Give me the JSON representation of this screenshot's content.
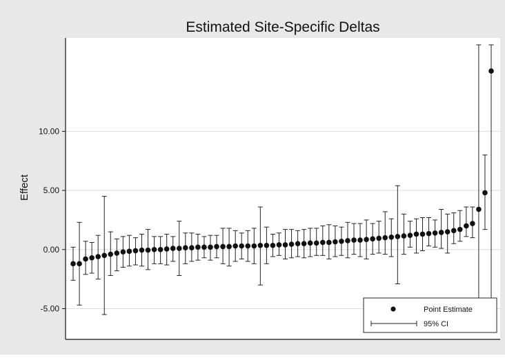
{
  "chart_data": {
    "type": "scatter",
    "title": "Estimated Site-Specific Deltas",
    "ylabel": "Effect",
    "xlabel": "",
    "ylim": [
      -7.6,
      17.9
    ],
    "yticks": [
      -5,
      0,
      5,
      10
    ],
    "ytick_labels": [
      "-5.00",
      "0.00",
      "5.00",
      "10.00"
    ],
    "grid": true,
    "legend": {
      "placement": "bottom-right",
      "entries": [
        "Point Estimate",
        "95% CI"
      ]
    },
    "colors": {
      "marks": "#111111",
      "background": "#e8e8e8",
      "plot": "#ffffff",
      "grid": "#dddddd"
    },
    "series": [
      {
        "name": "Point Estimate",
        "values": [
          -1.2,
          -1.2,
          -0.8,
          -0.7,
          -0.6,
          -0.5,
          -0.4,
          -0.3,
          -0.2,
          -0.15,
          -0.1,
          -0.05,
          -0.05,
          0.0,
          0.0,
          0.05,
          0.1,
          0.1,
          0.15,
          0.15,
          0.2,
          0.2,
          0.2,
          0.25,
          0.25,
          0.25,
          0.3,
          0.3,
          0.3,
          0.3,
          0.35,
          0.35,
          0.35,
          0.4,
          0.4,
          0.45,
          0.5,
          0.5,
          0.55,
          0.55,
          0.6,
          0.6,
          0.65,
          0.7,
          0.75,
          0.8,
          0.8,
          0.85,
          0.9,
          0.95,
          1.0,
          1.05,
          1.1,
          1.15,
          1.2,
          1.3,
          1.3,
          1.35,
          1.4,
          1.45,
          1.5,
          1.6,
          1.7,
          2.0,
          2.2,
          3.4,
          4.8,
          15.1
        ]
      },
      {
        "name": "95% CI",
        "lower": [
          -2.6,
          -4.7,
          -2.1,
          -2.0,
          -2.5,
          -5.5,
          -2.2,
          -1.8,
          -1.5,
          -1.4,
          -1.3,
          -1.4,
          -1.7,
          -1.2,
          -1.2,
          -1.3,
          -1.0,
          -2.2,
          -1.2,
          -1.0,
          -0.9,
          -0.7,
          -0.9,
          -0.7,
          -1.2,
          -1.4,
          -1.0,
          -0.8,
          -1.0,
          -1.2,
          -3.0,
          -1.2,
          -0.6,
          -0.5,
          -0.8,
          -0.7,
          -0.6,
          -0.7,
          -0.6,
          -0.5,
          -0.5,
          -0.8,
          -0.6,
          -0.5,
          -0.7,
          -0.4,
          -0.6,
          -0.8,
          -0.4,
          -0.3,
          -0.4,
          -0.6,
          -2.9,
          -0.4,
          0.2,
          -0.3,
          -0.1,
          0.3,
          0.2,
          0.1,
          -0.3,
          0.5,
          0.7,
          1.1,
          1.0,
          -4.5,
          1.7,
          -4.5
        ],
        "upper": [
          0.2,
          2.3,
          0.7,
          0.6,
          1.2,
          4.5,
          1.5,
          0.9,
          1.1,
          1.2,
          1.0,
          1.3,
          1.7,
          1.1,
          1.1,
          1.3,
          1.1,
          2.4,
          1.4,
          1.4,
          1.3,
          1.1,
          1.2,
          1.2,
          1.8,
          1.8,
          1.6,
          1.4,
          1.6,
          1.8,
          3.6,
          1.9,
          1.3,
          1.4,
          1.7,
          1.7,
          1.6,
          1.7,
          1.8,
          1.8,
          2.0,
          2.1,
          2.0,
          1.9,
          2.3,
          2.2,
          2.2,
          2.5,
          2.2,
          2.4,
          3.2,
          2.6,
          5.4,
          3.0,
          2.4,
          2.6,
          2.7,
          2.7,
          2.5,
          3.4,
          3.0,
          3.1,
          3.3,
          3.6,
          3.6,
          17.7,
          8.0,
          17.7
        ]
      }
    ]
  }
}
